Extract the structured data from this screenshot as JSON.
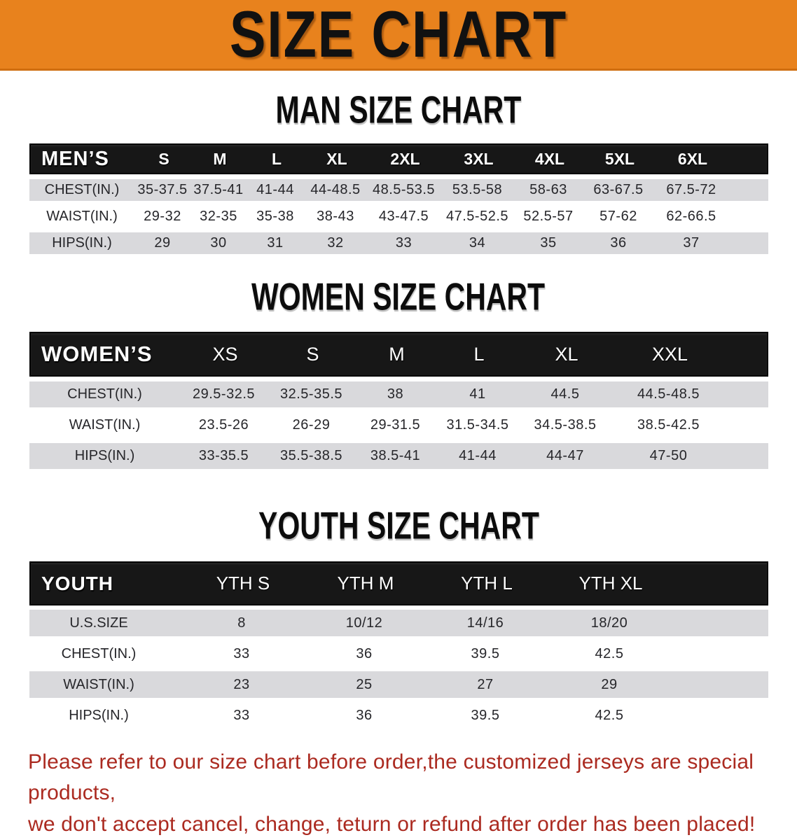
{
  "banner": {
    "title": "SIZE CHART"
  },
  "colors": {
    "banner_orange": "#e8821d",
    "table_header_black": "#171717",
    "row_gray": "#d9d9dc",
    "disclaimer_red": "#ab2a20",
    "value_text": "#26262a"
  },
  "sections": {
    "men": {
      "title": "MAN SIZE CHART",
      "table": {
        "label": "MEN’S",
        "sizes": [
          "S",
          "M",
          "L",
          "XL",
          "2XL",
          "3XL",
          "4XL",
          "5XL",
          "6XL"
        ],
        "rows": [
          {
            "label": "CHEST(IN.)",
            "values": [
              "35-37.5",
              "37.5-41",
              "41-44",
              "44-48.5",
              "48.5-53.5",
              "53.5-58",
              "58-63",
              "63-67.5",
              "67.5-72"
            ]
          },
          {
            "label": "WAIST(IN.)",
            "values": [
              "29-32",
              "32-35",
              "35-38",
              "38-43",
              "43-47.5",
              "47.5-52.5",
              "52.5-57",
              "57-62",
              "62-66.5"
            ]
          },
          {
            "label": "HIPS(IN.)",
            "values": [
              "29",
              "30",
              "31",
              "32",
              "33",
              "34",
              "35",
              "36",
              "37"
            ]
          }
        ]
      }
    },
    "women": {
      "title": "WOMEN SIZE CHART",
      "table": {
        "label": "WOMEN’S",
        "sizes": [
          "XS",
          "S",
          "M",
          "L",
          "XL",
          "XXL"
        ],
        "rows": [
          {
            "label": "CHEST(IN.)",
            "values": [
              "29.5-32.5",
              "32.5-35.5",
              "38",
              "41",
              "44.5",
              "44.5-48.5"
            ]
          },
          {
            "label": "WAIST(IN.)",
            "values": [
              "23.5-26",
              "26-29",
              "29-31.5",
              "31.5-34.5",
              "34.5-38.5",
              "38.5-42.5"
            ]
          },
          {
            "label": "HIPS(IN.)",
            "values": [
              "33-35.5",
              "35.5-38.5",
              "38.5-41",
              "41-44",
              "44-47",
              "47-50"
            ]
          }
        ]
      }
    },
    "youth": {
      "title": "YOUTH SIZE CHART",
      "table": {
        "label": "YOUTH",
        "sizes": [
          "YTH S",
          "YTH M",
          "YTH L",
          "YTH XL"
        ],
        "rows": [
          {
            "label": "U.S.SIZE",
            "values": [
              "8",
              "10/12",
              "14/16",
              "18/20"
            ]
          },
          {
            "label": "CHEST(IN.)",
            "values": [
              "33",
              "36",
              "39.5",
              "42.5"
            ]
          },
          {
            "label": "WAIST(IN.)",
            "values": [
              "23",
              "25",
              "27",
              "29"
            ]
          },
          {
            "label": "HIPS(IN.)",
            "values": [
              "33",
              "36",
              "39.5",
              "42.5"
            ]
          }
        ]
      }
    }
  },
  "disclaimer": {
    "line1": "Please refer to our size chart before order,the customized jerseys are special products,",
    "line2": "we don't accept cancel, change, teturn or refund after order has been placed!"
  }
}
